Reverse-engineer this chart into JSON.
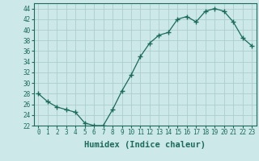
{
  "x": [
    0,
    1,
    2,
    3,
    4,
    5,
    6,
    7,
    8,
    9,
    10,
    11,
    12,
    13,
    14,
    15,
    16,
    17,
    18,
    19,
    20,
    21,
    22,
    23
  ],
  "y": [
    28,
    26.5,
    25.5,
    25,
    24.5,
    22.5,
    22,
    22,
    25,
    28.5,
    31.5,
    35,
    37.5,
    39,
    39.5,
    42,
    42.5,
    41.5,
    43.5,
    44,
    43.5,
    41.5,
    38.5,
    37
  ],
  "line_color": "#1a6b5a",
  "marker": "+",
  "marker_size": 4,
  "bg_color": "#cce8e8",
  "grid_color": "#a8c8c8",
  "xlabel": "Humidex (Indice chaleur)",
  "xlim": [
    -0.5,
    23.5
  ],
  "ylim": [
    22,
    45
  ],
  "yticks": [
    22,
    24,
    26,
    28,
    30,
    32,
    34,
    36,
    38,
    40,
    42,
    44
  ],
  "xticks": [
    0,
    1,
    2,
    3,
    4,
    5,
    6,
    7,
    8,
    9,
    10,
    11,
    12,
    13,
    14,
    15,
    16,
    17,
    18,
    19,
    20,
    21,
    22,
    23
  ],
  "tick_label_fontsize": 5.5,
  "xlabel_fontsize": 7.5
}
